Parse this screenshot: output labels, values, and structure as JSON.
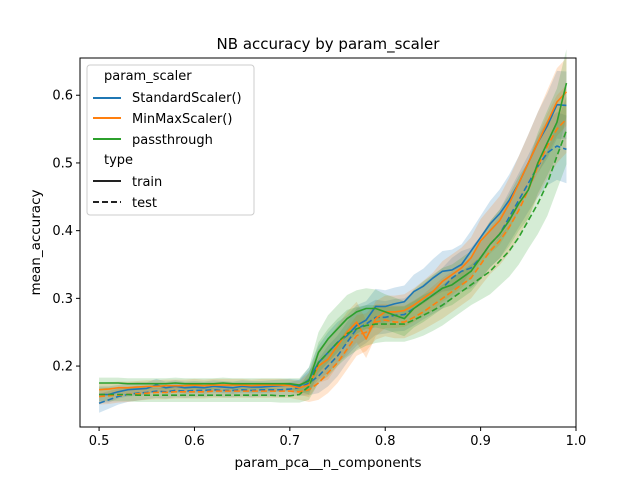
{
  "chart_data": {
    "type": "line",
    "title": "NB accuracy by param_scaler",
    "xlabel": "param_pca__n_components",
    "ylabel": "mean_accuracy",
    "xlim": [
      0.48,
      1.0
    ],
    "ylim": [
      0.11,
      0.655
    ],
    "xticks": [
      "0.5",
      "0.6",
      "0.7",
      "0.8",
      "0.9",
      "1.0"
    ],
    "xtick_values": [
      0.5,
      0.6,
      0.7,
      0.8,
      0.9,
      1.0
    ],
    "yticks": [
      "0.2",
      "0.3",
      "0.4",
      "0.5",
      "0.6"
    ],
    "ytick_values": [
      0.2,
      0.3,
      0.4,
      0.5,
      0.6
    ],
    "grid": false,
    "legend_position": "upper-left",
    "legend": {
      "hue_title": "param_scaler",
      "style_title": "type",
      "hue_entries": [
        "StandardScaler()",
        "MinMaxScaler()",
        "passthrough"
      ],
      "style_entries": [
        "train",
        "test"
      ]
    },
    "colors": {
      "StandardScaler()": "#1f77b4",
      "MinMaxScaler()": "#ff7f0e",
      "passthrough": "#2ca02c"
    },
    "x": [
      0.5,
      0.51,
      0.52,
      0.53,
      0.54,
      0.55,
      0.56,
      0.57,
      0.58,
      0.59,
      0.6,
      0.61,
      0.62,
      0.63,
      0.64,
      0.65,
      0.66,
      0.67,
      0.68,
      0.69,
      0.7,
      0.71,
      0.72,
      0.73,
      0.74,
      0.75,
      0.76,
      0.77,
      0.78,
      0.79,
      0.8,
      0.81,
      0.82,
      0.83,
      0.84,
      0.85,
      0.86,
      0.87,
      0.88,
      0.89,
      0.9,
      0.91,
      0.92,
      0.93,
      0.94,
      0.95,
      0.96,
      0.97,
      0.98,
      0.99
    ],
    "series": [
      {
        "name": "StandardScaler()",
        "type": "train",
        "values": [
          0.158,
          0.158,
          0.162,
          0.165,
          0.166,
          0.167,
          0.172,
          0.168,
          0.17,
          0.168,
          0.169,
          0.168,
          0.17,
          0.169,
          0.168,
          0.17,
          0.169,
          0.169,
          0.17,
          0.171,
          0.172,
          0.17,
          0.18,
          0.205,
          0.22,
          0.235,
          0.245,
          0.26,
          0.268,
          0.288,
          0.288,
          0.292,
          0.295,
          0.31,
          0.318,
          0.33,
          0.34,
          0.342,
          0.35,
          0.37,
          0.39,
          0.41,
          0.425,
          0.445,
          0.47,
          0.5,
          0.53,
          0.555,
          0.586,
          0.585
        ],
        "ci": [
          0.012,
          0.012,
          0.01,
          0.01,
          0.01,
          0.009,
          0.009,
          0.009,
          0.009,
          0.009,
          0.009,
          0.009,
          0.009,
          0.009,
          0.009,
          0.009,
          0.009,
          0.009,
          0.009,
          0.009,
          0.009,
          0.01,
          0.018,
          0.025,
          0.03,
          0.03,
          0.03,
          0.03,
          0.028,
          0.026,
          0.024,
          0.024,
          0.024,
          0.025,
          0.026,
          0.028,
          0.03,
          0.03,
          0.03,
          0.03,
          0.032,
          0.034,
          0.036,
          0.038,
          0.04,
          0.042,
          0.045,
          0.048,
          0.05,
          0.05
        ]
      },
      {
        "name": "StandardScaler()",
        "type": "test",
        "values": [
          0.145,
          0.15,
          0.155,
          0.158,
          0.16,
          0.161,
          0.163,
          0.162,
          0.164,
          0.163,
          0.164,
          0.164,
          0.165,
          0.164,
          0.164,
          0.165,
          0.164,
          0.165,
          0.165,
          0.165,
          0.166,
          0.168,
          0.175,
          0.185,
          0.2,
          0.215,
          0.235,
          0.255,
          0.262,
          0.272,
          0.272,
          0.275,
          0.276,
          0.285,
          0.295,
          0.305,
          0.315,
          0.33,
          0.34,
          0.345,
          0.36,
          0.38,
          0.395,
          0.42,
          0.445,
          0.47,
          0.495,
          0.515,
          0.525,
          0.52
        ],
        "ci": [
          0.014,
          0.013,
          0.012,
          0.011,
          0.011,
          0.01,
          0.01,
          0.01,
          0.01,
          0.01,
          0.01,
          0.01,
          0.01,
          0.01,
          0.01,
          0.01,
          0.01,
          0.01,
          0.01,
          0.01,
          0.01,
          0.012,
          0.018,
          0.025,
          0.03,
          0.03,
          0.03,
          0.03,
          0.028,
          0.026,
          0.024,
          0.024,
          0.024,
          0.025,
          0.026,
          0.028,
          0.03,
          0.03,
          0.03,
          0.03,
          0.032,
          0.034,
          0.036,
          0.038,
          0.04,
          0.042,
          0.045,
          0.048,
          0.05,
          0.05
        ]
      },
      {
        "name": "MinMaxScaler()",
        "type": "train",
        "values": [
          0.165,
          0.166,
          0.168,
          0.168,
          0.169,
          0.17,
          0.17,
          0.171,
          0.171,
          0.171,
          0.172,
          0.171,
          0.172,
          0.172,
          0.172,
          0.172,
          0.171,
          0.172,
          0.172,
          0.172,
          0.171,
          0.168,
          0.172,
          0.2,
          0.21,
          0.23,
          0.25,
          0.265,
          0.24,
          0.27,
          0.28,
          0.28,
          0.282,
          0.29,
          0.3,
          0.31,
          0.325,
          0.335,
          0.345,
          0.36,
          0.385,
          0.4,
          0.415,
          0.44,
          0.47,
          0.5,
          0.53,
          0.56,
          0.59,
          0.605
        ],
        "ci": [
          0.01,
          0.01,
          0.009,
          0.009,
          0.009,
          0.009,
          0.009,
          0.009,
          0.009,
          0.009,
          0.009,
          0.009,
          0.009,
          0.009,
          0.009,
          0.009,
          0.009,
          0.009,
          0.009,
          0.009,
          0.009,
          0.01,
          0.018,
          0.025,
          0.03,
          0.03,
          0.03,
          0.03,
          0.028,
          0.026,
          0.024,
          0.024,
          0.024,
          0.025,
          0.026,
          0.028,
          0.03,
          0.03,
          0.03,
          0.03,
          0.032,
          0.034,
          0.036,
          0.038,
          0.04,
          0.042,
          0.045,
          0.048,
          0.05,
          0.05
        ]
      },
      {
        "name": "MinMaxScaler()",
        "type": "test",
        "values": [
          0.155,
          0.156,
          0.157,
          0.158,
          0.159,
          0.16,
          0.161,
          0.161,
          0.162,
          0.162,
          0.162,
          0.162,
          0.163,
          0.163,
          0.163,
          0.163,
          0.163,
          0.163,
          0.163,
          0.163,
          0.163,
          0.162,
          0.165,
          0.175,
          0.19,
          0.205,
          0.225,
          0.245,
          0.25,
          0.265,
          0.268,
          0.265,
          0.265,
          0.272,
          0.28,
          0.29,
          0.3,
          0.31,
          0.32,
          0.33,
          0.35,
          0.37,
          0.385,
          0.405,
          0.43,
          0.46,
          0.495,
          0.525,
          0.55,
          0.565
        ],
        "ci": [
          0.012,
          0.012,
          0.011,
          0.011,
          0.01,
          0.01,
          0.01,
          0.01,
          0.01,
          0.01,
          0.01,
          0.01,
          0.01,
          0.01,
          0.01,
          0.01,
          0.01,
          0.01,
          0.01,
          0.01,
          0.01,
          0.012,
          0.018,
          0.025,
          0.03,
          0.03,
          0.03,
          0.03,
          0.028,
          0.026,
          0.024,
          0.024,
          0.024,
          0.025,
          0.026,
          0.028,
          0.03,
          0.03,
          0.03,
          0.03,
          0.032,
          0.034,
          0.036,
          0.038,
          0.04,
          0.042,
          0.045,
          0.048,
          0.05,
          0.05
        ]
      },
      {
        "name": "passthrough",
        "type": "train",
        "values": [
          0.175,
          0.175,
          0.175,
          0.174,
          0.174,
          0.174,
          0.174,
          0.174,
          0.175,
          0.174,
          0.174,
          0.174,
          0.174,
          0.175,
          0.174,
          0.174,
          0.174,
          0.174,
          0.174,
          0.174,
          0.174,
          0.172,
          0.178,
          0.22,
          0.24,
          0.255,
          0.27,
          0.28,
          0.285,
          0.285,
          0.28,
          0.275,
          0.27,
          0.285,
          0.295,
          0.305,
          0.315,
          0.32,
          0.33,
          0.34,
          0.36,
          0.38,
          0.395,
          0.415,
          0.44,
          0.46,
          0.5,
          0.53,
          0.56,
          0.618
        ],
        "ci": [
          0.008,
          0.008,
          0.008,
          0.008,
          0.008,
          0.008,
          0.008,
          0.008,
          0.008,
          0.008,
          0.008,
          0.008,
          0.008,
          0.008,
          0.008,
          0.008,
          0.008,
          0.008,
          0.008,
          0.008,
          0.008,
          0.01,
          0.02,
          0.03,
          0.035,
          0.035,
          0.035,
          0.032,
          0.03,
          0.028,
          0.026,
          0.026,
          0.026,
          0.028,
          0.03,
          0.03,
          0.03,
          0.03,
          0.03,
          0.03,
          0.032,
          0.034,
          0.036,
          0.038,
          0.04,
          0.042,
          0.045,
          0.048,
          0.05,
          0.05
        ]
      },
      {
        "name": "passthrough",
        "type": "test",
        "values": [
          0.158,
          0.158,
          0.158,
          0.158,
          0.157,
          0.157,
          0.157,
          0.157,
          0.157,
          0.157,
          0.157,
          0.157,
          0.157,
          0.157,
          0.157,
          0.157,
          0.157,
          0.157,
          0.157,
          0.156,
          0.156,
          0.158,
          0.17,
          0.205,
          0.22,
          0.235,
          0.248,
          0.255,
          0.26,
          0.262,
          0.262,
          0.262,
          0.262,
          0.268,
          0.275,
          0.282,
          0.29,
          0.3,
          0.31,
          0.32,
          0.33,
          0.34,
          0.355,
          0.37,
          0.39,
          0.415,
          0.44,
          0.47,
          0.51,
          0.548
        ],
        "ci": [
          0.01,
          0.01,
          0.01,
          0.01,
          0.01,
          0.01,
          0.01,
          0.01,
          0.01,
          0.01,
          0.01,
          0.01,
          0.01,
          0.01,
          0.01,
          0.01,
          0.01,
          0.01,
          0.01,
          0.01,
          0.01,
          0.012,
          0.02,
          0.03,
          0.035,
          0.035,
          0.035,
          0.032,
          0.03,
          0.028,
          0.026,
          0.026,
          0.026,
          0.028,
          0.03,
          0.03,
          0.03,
          0.03,
          0.03,
          0.03,
          0.032,
          0.034,
          0.036,
          0.038,
          0.04,
          0.042,
          0.045,
          0.048,
          0.05,
          0.05
        ]
      }
    ]
  }
}
